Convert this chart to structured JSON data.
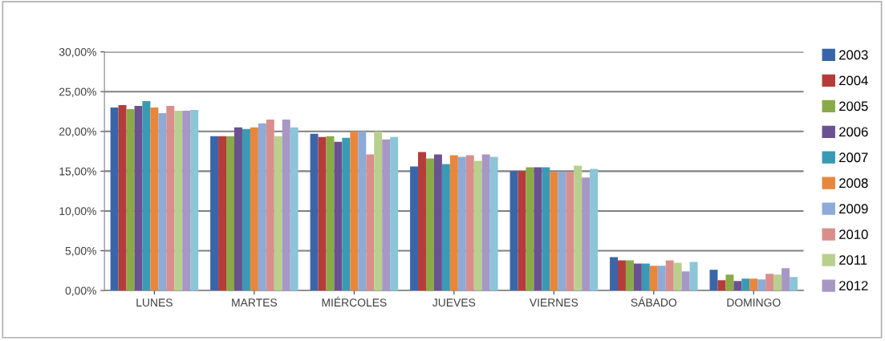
{
  "chart_data": {
    "type": "bar",
    "categories": [
      "LUNES",
      "MARTES",
      "MIÉRCOLES",
      "JUEVES",
      "VIERNES",
      "SÁBADO",
      "DOMINGO"
    ],
    "series": [
      {
        "name": "2003",
        "color": "#3b65a9",
        "values": [
          23.0,
          19.4,
          19.7,
          15.6,
          15.0,
          4.2,
          2.6
        ]
      },
      {
        "name": "2004",
        "color": "#b53c3a",
        "values": [
          23.3,
          19.4,
          19.3,
          17.4,
          15.0,
          3.8,
          1.3
        ]
      },
      {
        "name": "2005",
        "color": "#8aaa48",
        "values": [
          22.8,
          19.4,
          19.4,
          16.6,
          15.5,
          3.8,
          2.0
        ]
      },
      {
        "name": "2006",
        "color": "#6a5190",
        "values": [
          23.2,
          20.5,
          18.7,
          17.1,
          15.5,
          3.4,
          1.2
        ]
      },
      {
        "name": "2007",
        "color": "#3a9ab4",
        "values": [
          23.8,
          20.3,
          19.2,
          15.9,
          15.5,
          3.4,
          1.5
        ]
      },
      {
        "name": "2008",
        "color": "#e8873c",
        "values": [
          23.0,
          20.5,
          20.0,
          17.0,
          14.9,
          3.1,
          1.5
        ]
      },
      {
        "name": "2009",
        "color": "#8eaad6",
        "values": [
          22.3,
          21.0,
          20.0,
          16.8,
          14.9,
          3.1,
          1.4
        ]
      },
      {
        "name": "2010",
        "color": "#d98e8c",
        "values": [
          23.2,
          21.5,
          17.1,
          17.0,
          14.9,
          3.8,
          2.1
        ]
      },
      {
        "name": "2011",
        "color": "#b9cf8e",
        "values": [
          22.6,
          19.4,
          20.0,
          16.3,
          15.7,
          3.5,
          2.0
        ]
      },
      {
        "name": "2012",
        "color": "#a797c4",
        "values": [
          22.6,
          21.5,
          19.0,
          17.1,
          14.2,
          2.4,
          2.8
        ]
      },
      {
        "color": "#8cc4d8",
        "values": [
          22.7,
          20.5,
          19.3,
          16.8,
          15.3,
          3.6,
          1.7
        ]
      }
    ],
    "ylim": [
      0,
      30
    ],
    "yticks": [
      {
        "value": 0,
        "label": "0,00%"
      },
      {
        "value": 5,
        "label": "5,00%"
      },
      {
        "value": 10,
        "label": "10,00%"
      },
      {
        "value": 15,
        "label": "15,00%"
      },
      {
        "value": 20,
        "label": "20,00%"
      },
      {
        "value": 25,
        "label": "25,00%"
      },
      {
        "value": 30,
        "label": "30,00%"
      }
    ],
    "grid": "y",
    "legend": "right"
  }
}
